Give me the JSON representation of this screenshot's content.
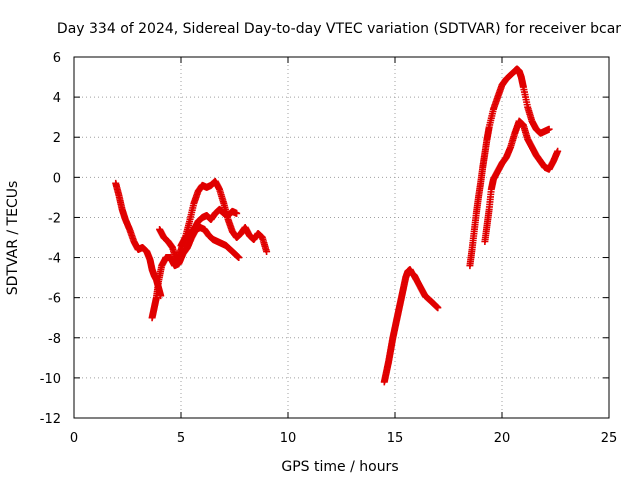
{
  "chart_data": {
    "type": "scatter",
    "title": "Day 334 of 2024, Sidereal Day-to-day VTEC variation (SDTVAR) for receiver bcar",
    "xlabel": "GPS time / hours",
    "ylabel": "SDTVAR / TECUs",
    "xlim": [
      0,
      25
    ],
    "ylim": [
      -12,
      6
    ],
    "x_ticks": [
      "0",
      "5",
      "10",
      "15",
      "20",
      "25"
    ],
    "y_ticks": [
      "-12",
      "-10",
      "-8",
      "-6",
      "-4",
      "-2",
      "0",
      "2",
      "4",
      "6"
    ],
    "grid": true,
    "marker": "plus",
    "series_color": "#e00000",
    "series": [
      {
        "x": [
          1.95,
          2.1,
          2.25,
          2.4,
          2.6,
          2.8,
          3.0,
          3.2,
          3.4,
          3.55,
          3.65,
          3.75,
          3.85,
          3.95,
          4.05
        ],
        "y": [
          -0.3,
          -0.9,
          -1.6,
          -2.1,
          -2.6,
          -3.2,
          -3.6,
          -3.5,
          -3.7,
          -4.1,
          -4.6,
          -4.9,
          -5.1,
          -5.5,
          -5.9
        ]
      },
      {
        "x": [
          3.65,
          3.75,
          3.85,
          3.95,
          4.1,
          4.3,
          4.5,
          4.7,
          4.9,
          5.1,
          5.3,
          5.5,
          5.7,
          5.9,
          6.1,
          6.3,
          6.5,
          6.7,
          6.9,
          7.1,
          7.3,
          7.5,
          7.7
        ],
        "y": [
          -7.0,
          -6.5,
          -6.0,
          -5.2,
          -4.4,
          -4.0,
          -4.0,
          -4.4,
          -4.3,
          -3.8,
          -3.5,
          -3.0,
          -2.6,
          -2.5,
          -2.6,
          -2.9,
          -3.1,
          -3.2,
          -3.3,
          -3.4,
          -3.6,
          -3.8,
          -4.0
        ]
      },
      {
        "x": [
          4.0,
          4.2,
          4.4,
          4.6,
          4.8,
          5.0,
          5.2,
          5.4,
          5.6,
          5.8,
          6.0,
          6.2,
          6.4,
          6.6,
          6.8,
          7.0,
          7.2,
          7.4,
          7.6
        ],
        "y": [
          -2.6,
          -3.0,
          -3.2,
          -3.5,
          -4.2,
          -3.6,
          -3.0,
          -2.8,
          -2.6,
          -2.2,
          -2.0,
          -1.9,
          -2.1,
          -1.8,
          -1.6,
          -1.8,
          -1.9,
          -1.7,
          -1.8
        ]
      },
      {
        "x": [
          5.0,
          5.2,
          5.4,
          5.6,
          5.8,
          6.0,
          6.2,
          6.4,
          6.6,
          6.8,
          7.0,
          7.2,
          7.4,
          7.6,
          7.8,
          8.0,
          8.2,
          8.4,
          8.6,
          8.8,
          9.0
        ],
        "y": [
          -3.4,
          -3.0,
          -2.2,
          -1.3,
          -0.7,
          -0.4,
          -0.5,
          -0.4,
          -0.2,
          -0.6,
          -1.3,
          -2.1,
          -2.7,
          -3.0,
          -2.8,
          -2.5,
          -2.9,
          -3.1,
          -2.8,
          -3.0,
          -3.7
        ]
      },
      {
        "x": [
          14.5,
          14.6,
          14.7,
          14.8,
          14.9,
          15.0,
          15.1,
          15.2,
          15.3,
          15.4,
          15.5,
          15.6,
          15.7,
          15.8,
          15.9,
          16.0,
          16.2,
          16.4,
          16.6,
          16.8,
          17.0
        ],
        "y": [
          -10.2,
          -9.7,
          -9.2,
          -8.6,
          -8.0,
          -7.5,
          -7.0,
          -6.5,
          -6.0,
          -5.5,
          -5.0,
          -4.7,
          -4.6,
          -4.8,
          -4.9,
          -5.1,
          -5.5,
          -5.9,
          -6.1,
          -6.3,
          -6.5
        ]
      },
      {
        "x": [
          18.5,
          18.6,
          18.7,
          18.8,
          18.9,
          19.0,
          19.1,
          19.2,
          19.3,
          19.4,
          19.6,
          19.8,
          20.0,
          20.2,
          20.4,
          20.6,
          20.7,
          20.8,
          20.9,
          21.0,
          21.2,
          21.4,
          21.6,
          21.8,
          22.0,
          22.2
        ],
        "y": [
          -4.4,
          -3.6,
          -2.7,
          -1.8,
          -1.0,
          -0.3,
          0.5,
          1.2,
          1.9,
          2.5,
          3.4,
          4.0,
          4.6,
          4.9,
          5.1,
          5.3,
          5.4,
          5.3,
          5.0,
          4.5,
          3.5,
          2.8,
          2.4,
          2.2,
          2.3,
          2.4
        ]
      },
      {
        "x": [
          19.2,
          19.3,
          19.4,
          19.5,
          19.6,
          19.8,
          20.0,
          20.2,
          20.4,
          20.6,
          20.8,
          21.0,
          21.2,
          21.4,
          21.6,
          21.8,
          22.0,
          22.2,
          22.4,
          22.6
        ],
        "y": [
          -3.2,
          -2.4,
          -1.6,
          -0.6,
          -0.1,
          0.3,
          0.7,
          1.0,
          1.5,
          2.2,
          2.8,
          2.6,
          1.9,
          1.5,
          1.1,
          0.8,
          0.5,
          0.4,
          0.8,
          1.3
        ]
      }
    ]
  }
}
